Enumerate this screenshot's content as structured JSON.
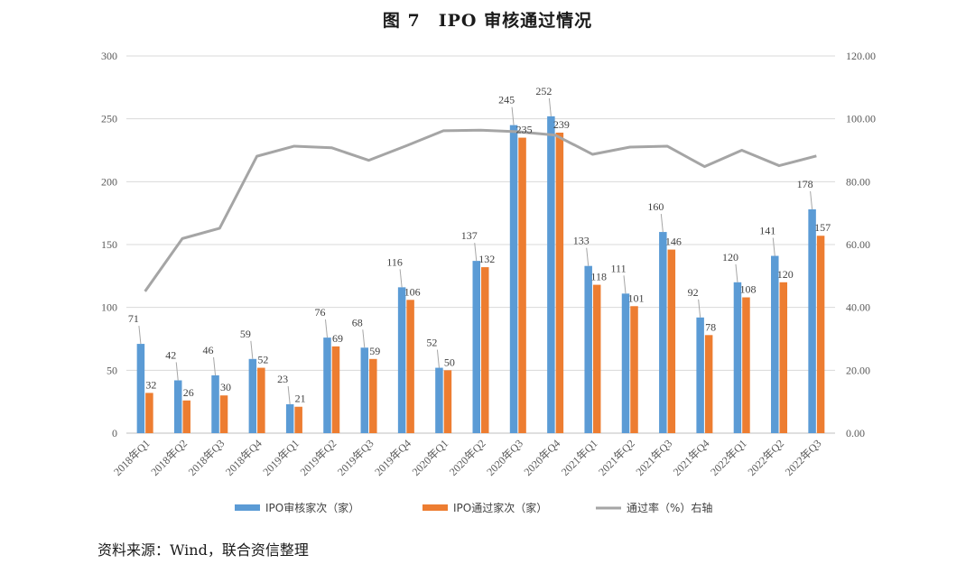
{
  "title": "图 7　IPO 审核通过情况",
  "source": "资料来源：Wind，联合资信整理",
  "chart_data": {
    "type": "bar",
    "categories": [
      "2018年Q1",
      "2018年Q2",
      "2018年Q3",
      "2018年Q4",
      "2019年Q1",
      "2019年Q2",
      "2019年Q3",
      "2019年Q4",
      "2020年Q1",
      "2020年Q2",
      "2020年Q3",
      "2020年Q4",
      "2021年Q1",
      "2021年Q2",
      "2021年Q3",
      "2021年Q4",
      "2022年Q1",
      "2022年Q2",
      "2022年Q3"
    ],
    "series": [
      {
        "name": "IPO审核家次（家）",
        "type": "bar",
        "axis": "left",
        "color": "#5b9bd5",
        "values": [
          71,
          42,
          46,
          59,
          23,
          76,
          68,
          116,
          52,
          137,
          245,
          252,
          133,
          111,
          160,
          92,
          120,
          141,
          178
        ]
      },
      {
        "name": "IPO通过家次（家）",
        "type": "bar",
        "axis": "left",
        "color": "#ed7d31",
        "values": [
          32,
          26,
          30,
          52,
          21,
          69,
          59,
          106,
          50,
          132,
          235,
          239,
          118,
          101,
          146,
          78,
          108,
          120,
          157
        ]
      },
      {
        "name": "通过率（%）右轴",
        "type": "line",
        "axis": "right",
        "color": "#a5a5a5",
        "values": [
          45.1,
          61.9,
          65.2,
          88.1,
          91.3,
          90.8,
          86.8,
          91.4,
          96.2,
          96.4,
          95.9,
          94.8,
          88.7,
          91.0,
          91.3,
          84.8,
          90.0,
          85.1,
          88.2
        ]
      }
    ],
    "y_left": {
      "min": 0,
      "max": 300,
      "ticks": [
        "0",
        "50",
        "100",
        "150",
        "200",
        "250",
        "300"
      ]
    },
    "y_right": {
      "min": 0,
      "max": 120,
      "ticks": [
        "0.00",
        "20.00",
        "40.00",
        "60.00",
        "80.00",
        "100.00",
        "120.00"
      ]
    },
    "grid": true,
    "legend_position": "bottom"
  }
}
